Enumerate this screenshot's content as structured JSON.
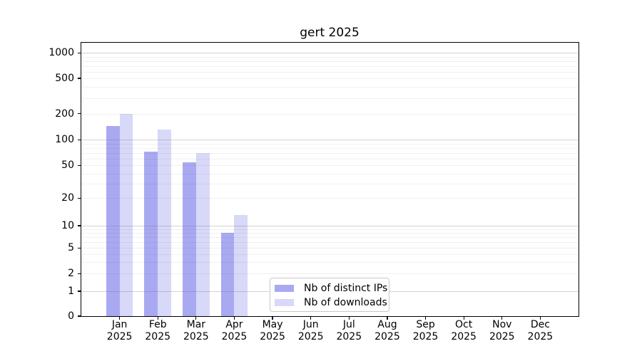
{
  "chart_data": {
    "type": "bar",
    "title": "gert 2025",
    "x_tick_year": "2025",
    "categories": [
      "Jan",
      "Feb",
      "Mar",
      "Apr",
      "May",
      "Jun",
      "Jul",
      "Aug",
      "Sep",
      "Oct",
      "Nov",
      "Dec"
    ],
    "series": [
      {
        "name": "Nb of distinct IPs",
        "color": "#a9a9f2",
        "values": [
          145,
          72,
          55,
          8,
          0,
          0,
          0,
          0,
          0,
          0,
          0,
          0
        ]
      },
      {
        "name": "Nb of downloads",
        "color": "#d8d8f8",
        "values": [
          200,
          130,
          70,
          13,
          0,
          0,
          0,
          0,
          0,
          0,
          0,
          0
        ]
      }
    ],
    "yticks": [
      0,
      1,
      2,
      5,
      10,
      20,
      50,
      100,
      200,
      500,
      1000
    ],
    "yscale": "log-like (0,1 linear segment, log above)",
    "ylim_bottom": 0,
    "grid": true,
    "legend_position": "lower center",
    "colors": {
      "distinct_ips": "#a9a9f2",
      "downloads": "#d8d8f8",
      "major_grid": "#c9c9c9",
      "minor_grid": "#ececec"
    }
  }
}
